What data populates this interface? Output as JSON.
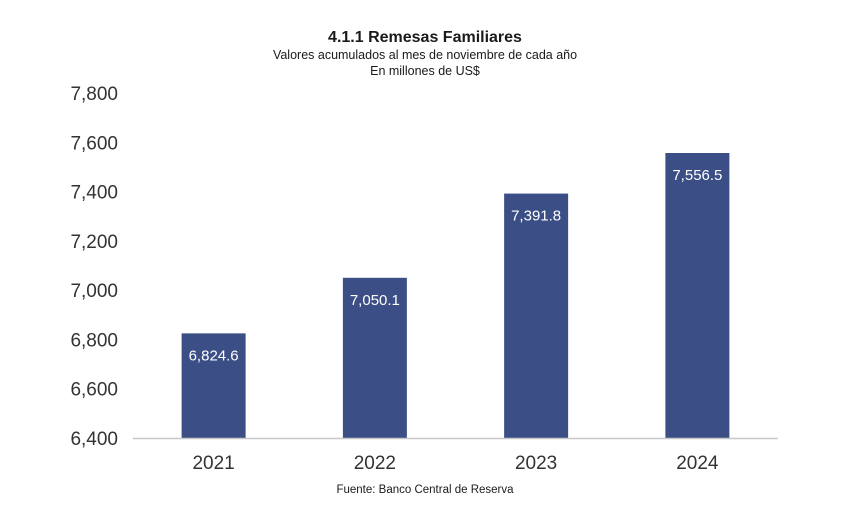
{
  "chart_data": {
    "type": "bar",
    "title": "4.1.1 Remesas Familiares",
    "subtitle": [
      "Valores acumulados al mes de noviembre de cada año",
      "En millones de US$"
    ],
    "source": "Fuente: Banco Central de Reserva",
    "categories": [
      "2021",
      "2022",
      "2023",
      "2024"
    ],
    "values": [
      6824.6,
      7050.1,
      7391.8,
      7556.5
    ],
    "data_labels": [
      "6,824.6",
      "7,050.1",
      "7,391.8",
      "7,556.5"
    ],
    "ylim": [
      6400,
      7800
    ],
    "yticks": [
      6400,
      6600,
      6800,
      7000,
      7200,
      7400,
      7600,
      7800
    ],
    "ytick_labels": [
      "6,400",
      "6,600",
      "6,800",
      "7,000",
      "7,200",
      "7,400",
      "7,600",
      "7,800"
    ],
    "bar_color": "#3b4f86",
    "axis_color": "#c8c8c8",
    "grid": false,
    "legend": "none"
  }
}
